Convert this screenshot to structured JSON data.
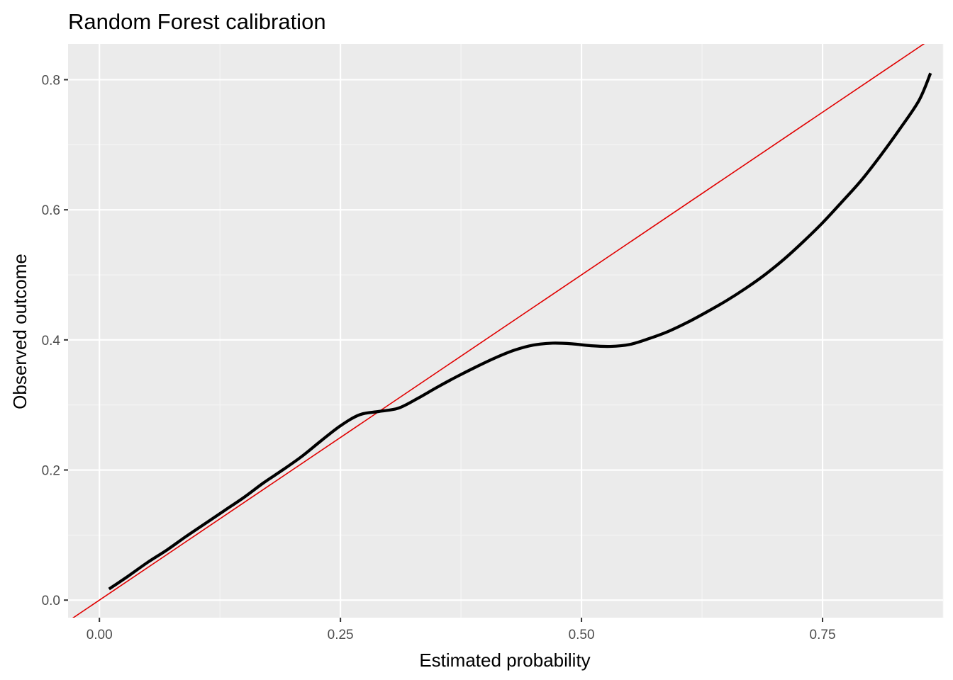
{
  "chart_data": {
    "type": "line",
    "title": "Random Forest calibration",
    "xlabel": "Estimated probability",
    "ylabel": "Observed outcome",
    "xlim": [
      -0.0325,
      0.875
    ],
    "ylim": [
      -0.027,
      0.855
    ],
    "x_ticks": [
      0.0,
      0.25,
      0.5,
      0.75
    ],
    "x_tick_labels": [
      "0.00",
      "0.25",
      "0.50",
      "0.75"
    ],
    "y_ticks": [
      0.0,
      0.2,
      0.4,
      0.6,
      0.8
    ],
    "y_tick_labels": [
      "0.0",
      "0.2",
      "0.4",
      "0.6",
      "0.8"
    ],
    "grid": true,
    "legend": "none",
    "colors": {
      "panel_background": "#ebebeb",
      "grid_major": "#ffffff",
      "grid_minor": "#f5f5f5",
      "calibration_curve": "#000000",
      "reference_line": "#e00000"
    },
    "series": [
      {
        "x": [
          0.01,
          0.03,
          0.05,
          0.07,
          0.09,
          0.11,
          0.13,
          0.15,
          0.17,
          0.19,
          0.21,
          0.23,
          0.25,
          0.27,
          0.29,
          0.31,
          0.33,
          0.35,
          0.37,
          0.39,
          0.41,
          0.43,
          0.45,
          0.47,
          0.49,
          0.51,
          0.53,
          0.55,
          0.57,
          0.59,
          0.61,
          0.63,
          0.65,
          0.67,
          0.69,
          0.71,
          0.73,
          0.75,
          0.77,
          0.79,
          0.81,
          0.83,
          0.85,
          0.862
        ],
        "y": [
          0.017,
          0.037,
          0.058,
          0.077,
          0.098,
          0.118,
          0.138,
          0.158,
          0.18,
          0.2,
          0.221,
          0.245,
          0.268,
          0.285,
          0.29,
          0.295,
          0.31,
          0.327,
          0.343,
          0.358,
          0.372,
          0.384,
          0.392,
          0.395,
          0.394,
          0.391,
          0.39,
          0.393,
          0.402,
          0.413,
          0.427,
          0.443,
          0.46,
          0.479,
          0.5,
          0.524,
          0.551,
          0.58,
          0.612,
          0.645,
          0.683,
          0.724,
          0.768,
          0.81
        ]
      },
      {
        "x": [
          -0.0325,
          0.875
        ],
        "y": [
          -0.0325,
          0.875
        ]
      }
    ]
  }
}
